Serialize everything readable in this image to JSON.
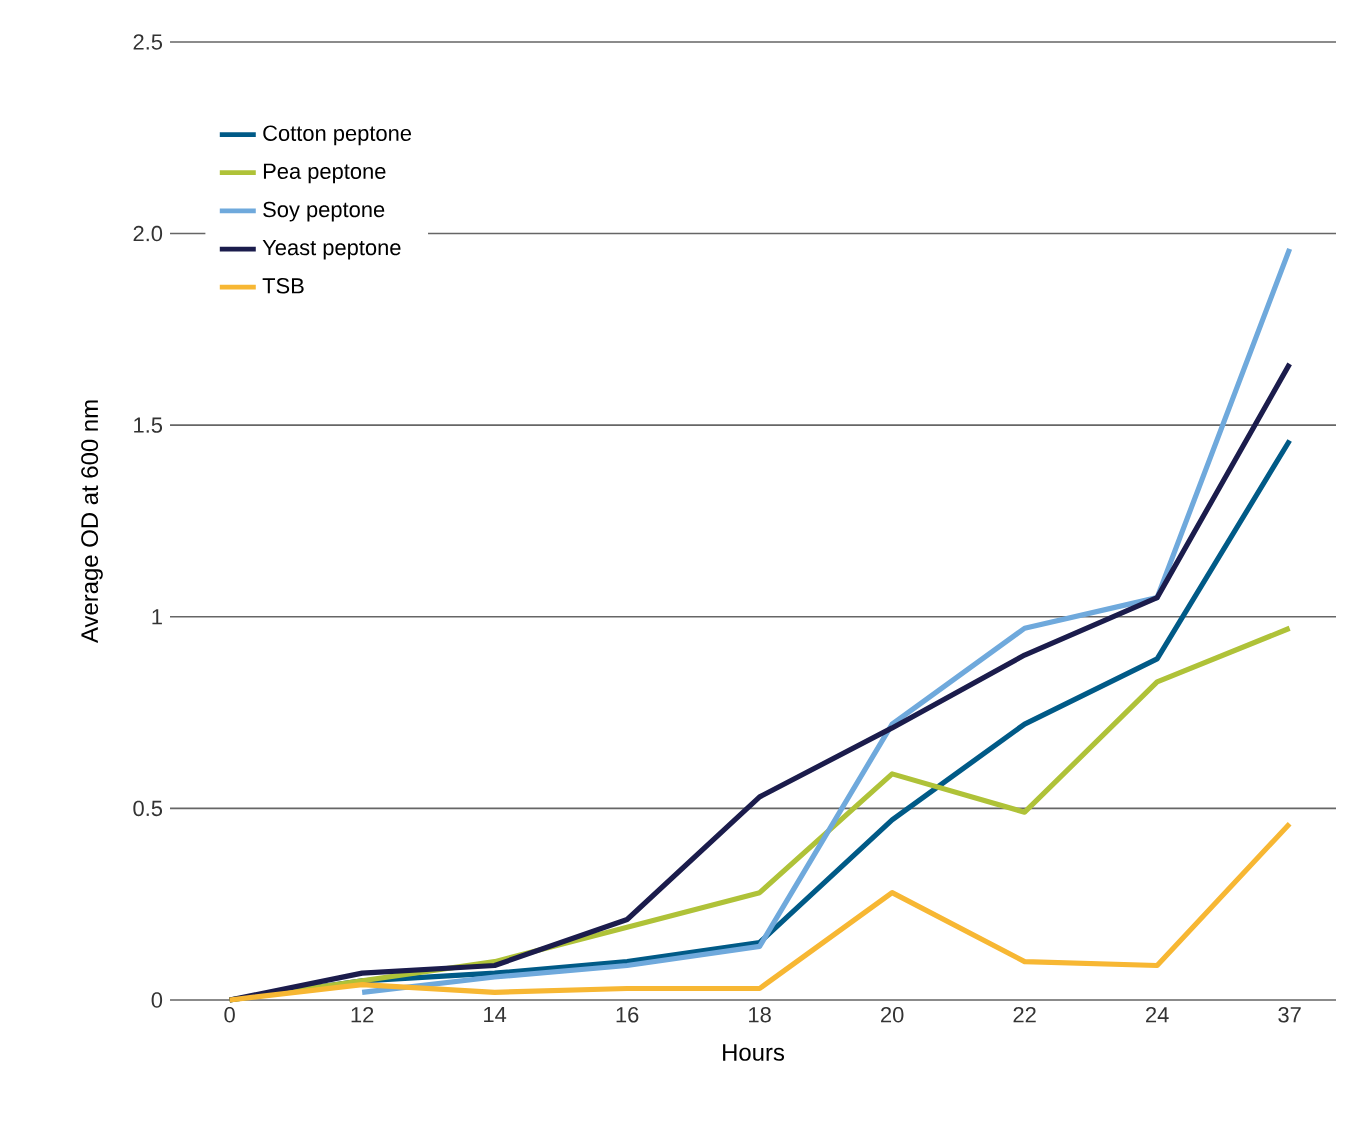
{
  "chart_data": {
    "type": "line",
    "xlabel": "Hours",
    "ylabel": "Average OD at 600 nm",
    "categories": [
      "0",
      "12",
      "14",
      "16",
      "18",
      "20",
      "22",
      "24",
      "37"
    ],
    "series": [
      {
        "name": "Cotton peptone",
        "color": "#005a87",
        "values": [
          0,
          0.05,
          0.07,
          0.1,
          0.15,
          0.47,
          0.72,
          0.89,
          1.46
        ]
      },
      {
        "name": "Pea peptone",
        "color": "#afc238",
        "values": [
          0,
          0.05,
          0.1,
          0.19,
          0.28,
          0.59,
          0.49,
          0.83,
          0.97
        ]
      },
      {
        "name": "Soy peptone",
        "color": "#6fa9dc",
        "values": [
          null,
          0.02,
          0.06,
          0.09,
          0.14,
          0.72,
          0.97,
          1.05,
          1.96
        ]
      },
      {
        "name": "Yeast peptone",
        "color": "#1b1c4c",
        "values": [
          0,
          0.07,
          0.09,
          0.21,
          0.53,
          0.71,
          0.9,
          1.05,
          1.66
        ]
      },
      {
        "name": "TSB",
        "color": "#f7b733",
        "values": [
          0,
          0.04,
          0.02,
          0.03,
          0.03,
          0.28,
          0.1,
          0.09,
          0.46
        ]
      }
    ],
    "ylim": [
      0,
      2.5
    ],
    "yticks": [
      0,
      0.5,
      1,
      {
        "value": 1.5,
        "label": "1.5"
      },
      {
        "value": 2,
        "label": "2.0"
      },
      {
        "value": 2.5,
        "label": "2.5"
      }
    ],
    "grid": "y",
    "legend": "top left",
    "marker": "none",
    "line_style": "solid"
  }
}
